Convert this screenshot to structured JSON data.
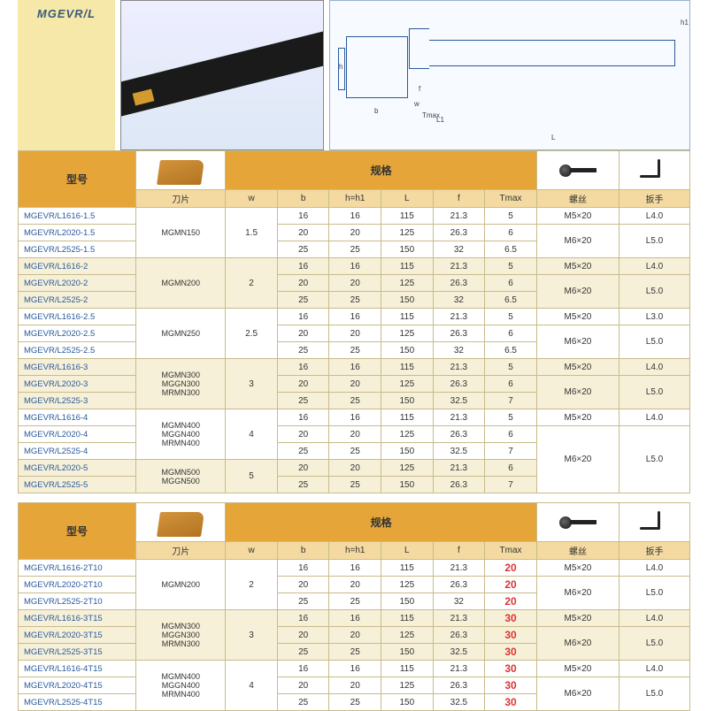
{
  "title": "MGEVR/L",
  "header_labels": {
    "model": "型号",
    "spec": "规格",
    "insert": "刀片",
    "screw": "螺丝",
    "wrench": "扳手"
  },
  "dim_labels": [
    "w",
    "b",
    "h=h1",
    "L",
    "f",
    "Tmax"
  ],
  "diagram_labels": {
    "L": "L",
    "L1": "L1",
    "h1": "h1",
    "h": "h",
    "b": "b",
    "f": "f",
    "w": "w",
    "Tmax": "Tmax"
  },
  "colors": {
    "header_orange": "#e5a538",
    "header_tan": "#f4daa0",
    "stripe_a": "#ffffff",
    "stripe_b": "#f7f0d8",
    "title_bg": "#f5e8a8",
    "red": "#d33333",
    "border": "#c8bb8a"
  },
  "table1": {
    "groups": [
      {
        "insert": "MGMN150",
        "w": "1.5",
        "stripe": "a",
        "rows": [
          {
            "model": "MGEVR/L1616-1.5",
            "b": "16",
            "h": "16",
            "L": "115",
            "f": "21.3",
            "Tmax": "5",
            "screw": "M5×20",
            "wrench": "L4.0"
          },
          {
            "model": "MGEVR/L2020-1.5",
            "b": "20",
            "h": "20",
            "L": "125",
            "f": "26.3",
            "Tmax": "6",
            "screw": "M6×20",
            "wrench": "L5.0",
            "screw_span": 2,
            "wrench_span": 2
          },
          {
            "model": "MGEVR/L2525-1.5",
            "b": "25",
            "h": "25",
            "L": "150",
            "f": "32",
            "Tmax": "6.5"
          }
        ]
      },
      {
        "insert": "MGMN200",
        "w": "2",
        "stripe": "b",
        "rows": [
          {
            "model": "MGEVR/L1616-2",
            "b": "16",
            "h": "16",
            "L": "115",
            "f": "21.3",
            "Tmax": "5",
            "screw": "M5×20",
            "wrench": "L4.0"
          },
          {
            "model": "MGEVR/L2020-2",
            "b": "20",
            "h": "20",
            "L": "125",
            "f": "26.3",
            "Tmax": "6",
            "screw": "M6×20",
            "wrench": "L5.0",
            "screw_span": 2,
            "wrench_span": 2
          },
          {
            "model": "MGEVR/L2525-2",
            "b": "25",
            "h": "25",
            "L": "150",
            "f": "32",
            "Tmax": "6.5"
          }
        ]
      },
      {
        "insert": "MGMN250",
        "w": "2.5",
        "stripe": "a",
        "rows": [
          {
            "model": "MGEVR/L1616-2.5",
            "b": "16",
            "h": "16",
            "L": "115",
            "f": "21.3",
            "Tmax": "5",
            "screw": "M5×20",
            "wrench": "L3.0"
          },
          {
            "model": "MGEVR/L2020-2.5",
            "b": "20",
            "h": "20",
            "L": "125",
            "f": "26.3",
            "Tmax": "6",
            "screw": "M6×20",
            "wrench": "L5.0",
            "screw_span": 2,
            "wrench_span": 2
          },
          {
            "model": "MGEVR/L2525-2.5",
            "b": "25",
            "h": "25",
            "L": "150",
            "f": "32",
            "Tmax": "6.5"
          }
        ]
      },
      {
        "insert": "MGMN300\nMGGN300\nMRMN300",
        "w": "3",
        "stripe": "b",
        "rows": [
          {
            "model": "MGEVR/L1616-3",
            "b": "16",
            "h": "16",
            "L": "115",
            "f": "21.3",
            "Tmax": "5",
            "screw": "M5×20",
            "wrench": "L4.0"
          },
          {
            "model": "MGEVR/L2020-3",
            "b": "20",
            "h": "20",
            "L": "125",
            "f": "26.3",
            "Tmax": "6",
            "screw": "M6×20",
            "wrench": "L5.0",
            "screw_span": 2,
            "wrench_span": 2
          },
          {
            "model": "MGEVR/L2525-3",
            "b": "25",
            "h": "25",
            "L": "150",
            "f": "32.5",
            "Tmax": "7"
          }
        ]
      },
      {
        "insert": "MGMN400\nMGGN400\nMRMN400",
        "w": "4",
        "stripe": "a",
        "rows": [
          {
            "model": "MGEVR/L1616-4",
            "b": "16",
            "h": "16",
            "L": "115",
            "f": "21.3",
            "Tmax": "5",
            "screw": "M5×20",
            "wrench": "L4.0"
          },
          {
            "model": "MGEVR/L2020-4",
            "b": "20",
            "h": "20",
            "L": "125",
            "f": "26.3",
            "Tmax": "6",
            "screw": "M6×20",
            "wrench": "L5.0",
            "screw_span": 4,
            "wrench_span": 4
          },
          {
            "model": "MGEVR/L2525-4",
            "b": "25",
            "h": "25",
            "L": "150",
            "f": "32.5",
            "Tmax": "7"
          }
        ]
      },
      {
        "insert": "MGMN500\nMGGN500",
        "w": "5",
        "stripe": "b",
        "rows": [
          {
            "model": "MGEVR/L2020-5",
            "b": "20",
            "h": "20",
            "L": "125",
            "f": "21.3",
            "Tmax": "6"
          },
          {
            "model": "MGEVR/L2525-5",
            "b": "25",
            "h": "25",
            "L": "150",
            "f": "26.3",
            "Tmax": "7"
          }
        ]
      }
    ]
  },
  "table2": {
    "groups": [
      {
        "insert": "MGMN200",
        "w": "2",
        "stripe": "a",
        "rows": [
          {
            "model": "MGEVR/L1616-2T10",
            "b": "16",
            "h": "16",
            "L": "115",
            "f": "21.3",
            "Tmax": "20",
            "red": true,
            "screw": "M5×20",
            "wrench": "L4.0"
          },
          {
            "model": "MGEVR/L2020-2T10",
            "b": "20",
            "h": "20",
            "L": "125",
            "f": "26.3",
            "Tmax": "20",
            "red": true,
            "screw": "M6×20",
            "wrench": "L5.0",
            "screw_span": 2,
            "wrench_span": 2
          },
          {
            "model": "MGEVR/L2525-2T10",
            "b": "25",
            "h": "25",
            "L": "150",
            "f": "32",
            "Tmax": "20",
            "red": true
          }
        ]
      },
      {
        "insert": "MGMN300\nMGGN300\nMRMN300",
        "w": "3",
        "stripe": "b",
        "rows": [
          {
            "model": "MGEVR/L1616-3T15",
            "b": "16",
            "h": "16",
            "L": "115",
            "f": "21.3",
            "Tmax": "30",
            "red": true,
            "screw": "M5×20",
            "wrench": "L4.0"
          },
          {
            "model": "MGEVR/L2020-3T15",
            "b": "20",
            "h": "20",
            "L": "125",
            "f": "26.3",
            "Tmax": "30",
            "red": true,
            "screw": "M6×20",
            "wrench": "L5.0",
            "screw_span": 2,
            "wrench_span": 2
          },
          {
            "model": "MGEVR/L2525-3T15",
            "b": "25",
            "h": "25",
            "L": "150",
            "f": "32.5",
            "Tmax": "30",
            "red": true
          }
        ]
      },
      {
        "insert": "MGMN400\nMGGN400\nMRMN400",
        "w": "4",
        "stripe": "a",
        "rows": [
          {
            "model": "MGEVR/L1616-4T15",
            "b": "16",
            "h": "16",
            "L": "115",
            "f": "21.3",
            "Tmax": "30",
            "red": true,
            "screw": "M5×20",
            "wrench": "L4.0"
          },
          {
            "model": "MGEVR/L2020-4T15",
            "b": "20",
            "h": "20",
            "L": "125",
            "f": "26.3",
            "Tmax": "30",
            "red": true,
            "screw": "M6×20",
            "wrench": "L5.0",
            "screw_span": 2,
            "wrench_span": 2
          },
          {
            "model": "MGEVR/L2525-4T15",
            "b": "25",
            "h": "25",
            "L": "150",
            "f": "32.5",
            "Tmax": "30",
            "red": true
          }
        ]
      }
    ]
  }
}
